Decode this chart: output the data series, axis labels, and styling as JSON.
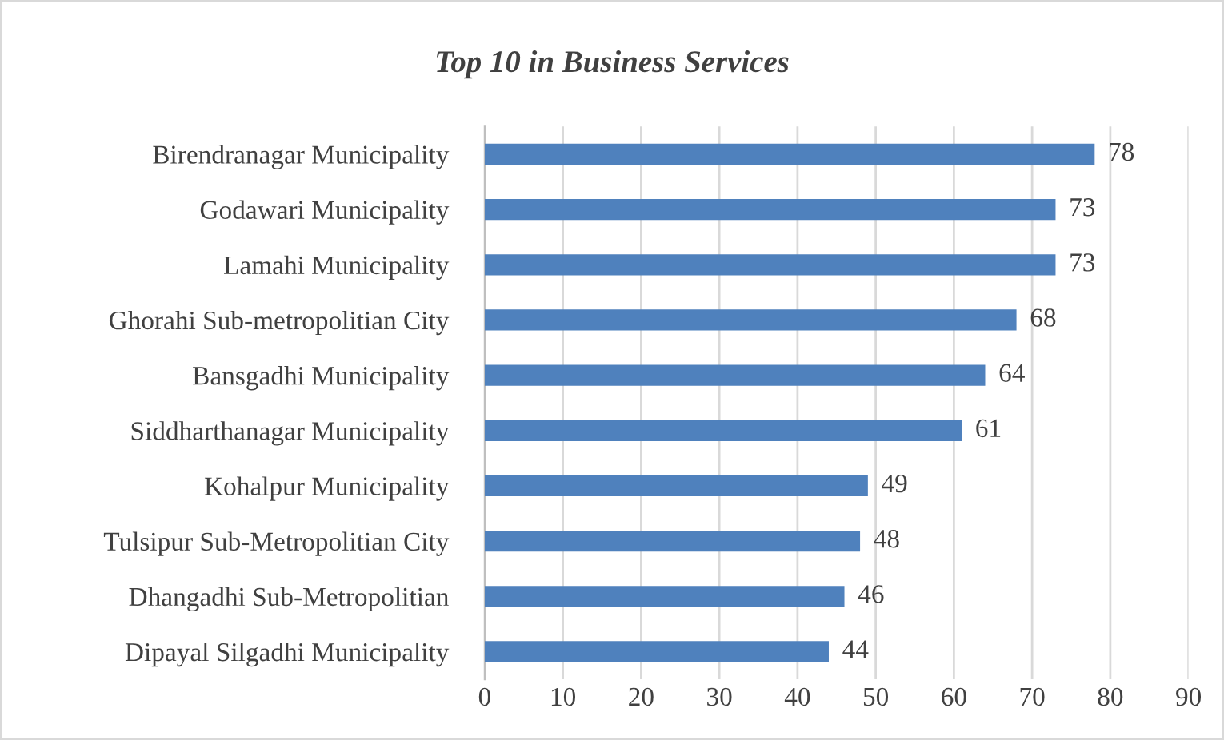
{
  "chart_data": {
    "type": "bar",
    "orientation": "horizontal",
    "title": "Top 10 in Business Services",
    "categories": [
      "Birendranagar Municipality",
      "Godawari Municipality",
      "Lamahi Municipality",
      "Ghorahi Sub-metropolitian City",
      "Bansgadhi Municipality",
      "Siddharthanagar Municipality",
      "Kohalpur Municipality",
      "Tulsipur Sub-Metropolitian City",
      "Dhangadhi Sub-Metropolitian",
      "Dipayal Silgadhi Municipality"
    ],
    "values": [
      78,
      73,
      73,
      68,
      64,
      61,
      49,
      48,
      46,
      44
    ],
    "color": "#4f81bd",
    "xlim": [
      0,
      90
    ],
    "xticks": [
      0,
      10,
      20,
      30,
      40,
      50,
      60,
      70,
      80,
      90
    ],
    "grid": "x",
    "data_labels": true
  }
}
